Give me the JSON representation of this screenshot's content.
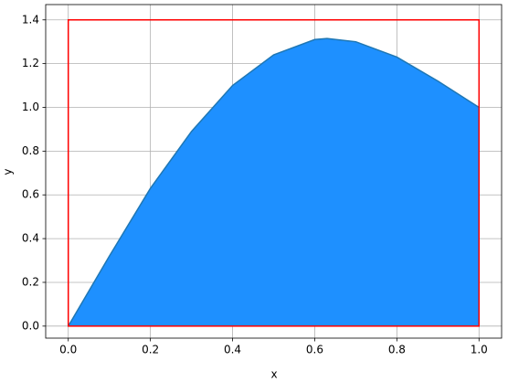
{
  "chart_data": {
    "type": "area",
    "x_label": "x",
    "y_label": "y",
    "x": [
      0,
      0.1,
      0.2,
      0.3,
      0.4,
      0.5,
      0.6,
      0.63,
      0.7,
      0.8,
      0.9,
      1.0
    ],
    "series": [
      {
        "color": "#1e90ff",
        "line_color": "#1f77b4",
        "values": [
          0,
          0.32,
          0.63,
          0.89,
          1.1,
          1.24,
          1.31,
          1.315,
          1.3,
          1.23,
          1.12,
          1.0
        ]
      }
    ],
    "rectangle": {
      "x": [
        0,
        1
      ],
      "y": [
        0,
        1.4
      ],
      "color": "red"
    },
    "xlim": [
      -0.055,
      1.055
    ],
    "ylim": [
      -0.055,
      1.47
    ],
    "xticks": [
      {
        "value": 0,
        "label": "0.0"
      },
      {
        "value": 0.2,
        "label": "0.2"
      },
      {
        "value": 0.4,
        "label": "0.4"
      },
      {
        "value": 0.6,
        "label": "0.6"
      },
      {
        "value": 0.8,
        "label": "0.8"
      },
      {
        "value": 1,
        "label": "1.0"
      }
    ],
    "yticks": [
      {
        "value": 0,
        "label": "0.0"
      },
      {
        "value": 0.2,
        "label": "0.2"
      },
      {
        "value": 0.4,
        "label": "0.4"
      },
      {
        "value": 0.6,
        "label": "0.6"
      },
      {
        "value": 0.8,
        "label": "0.8"
      },
      {
        "value": 1,
        "label": "1.0"
      },
      {
        "value": 1.2,
        "label": "1.2"
      },
      {
        "value": 1.4,
        "label": "1.4"
      }
    ],
    "grid": true
  }
}
